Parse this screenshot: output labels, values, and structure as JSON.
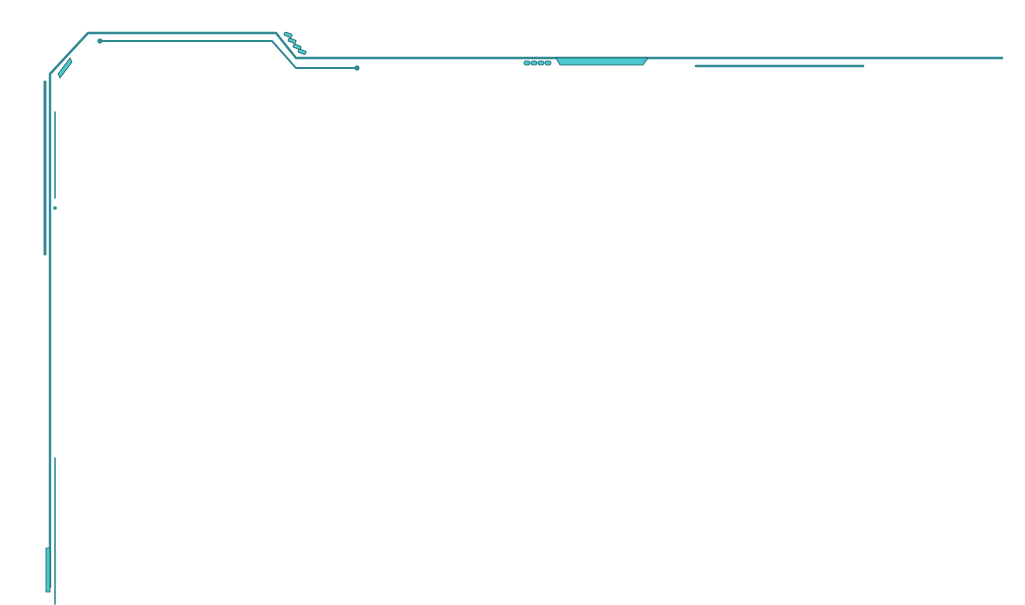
{
  "frame": {
    "stroke_color": "#2f8a93",
    "accent_fill": "#4cc6cf",
    "dark_outline": "#1f5f67",
    "background": "#ffffff"
  }
}
